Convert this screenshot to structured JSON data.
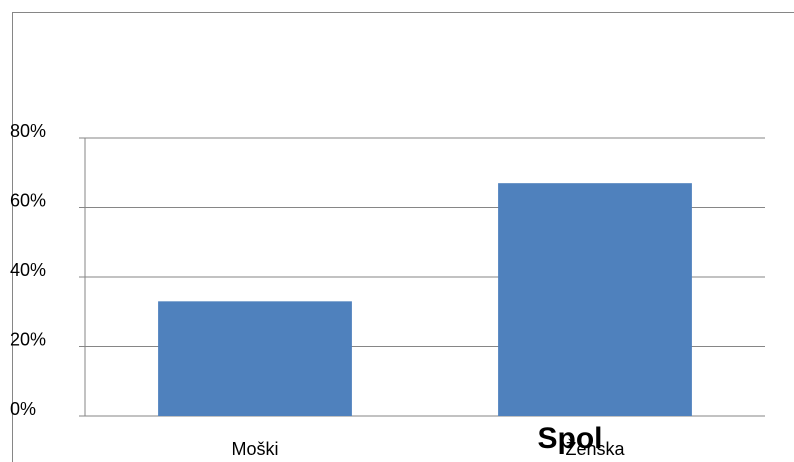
{
  "chart_data": {
    "type": "bar",
    "title": "Spol",
    "categories": [
      "Moški",
      "Ženska"
    ],
    "values": [
      33,
      67
    ],
    "color": "#4f81bd",
    "ylim": [
      0,
      80
    ],
    "yticks": [
      {
        "value": 0,
        "label": "0%"
      },
      {
        "value": 20,
        "label": "20%"
      },
      {
        "value": 40,
        "label": "40%"
      },
      {
        "value": 60,
        "label": "60%"
      },
      {
        "value": 80,
        "label": "80%"
      }
    ],
    "grid": true
  }
}
